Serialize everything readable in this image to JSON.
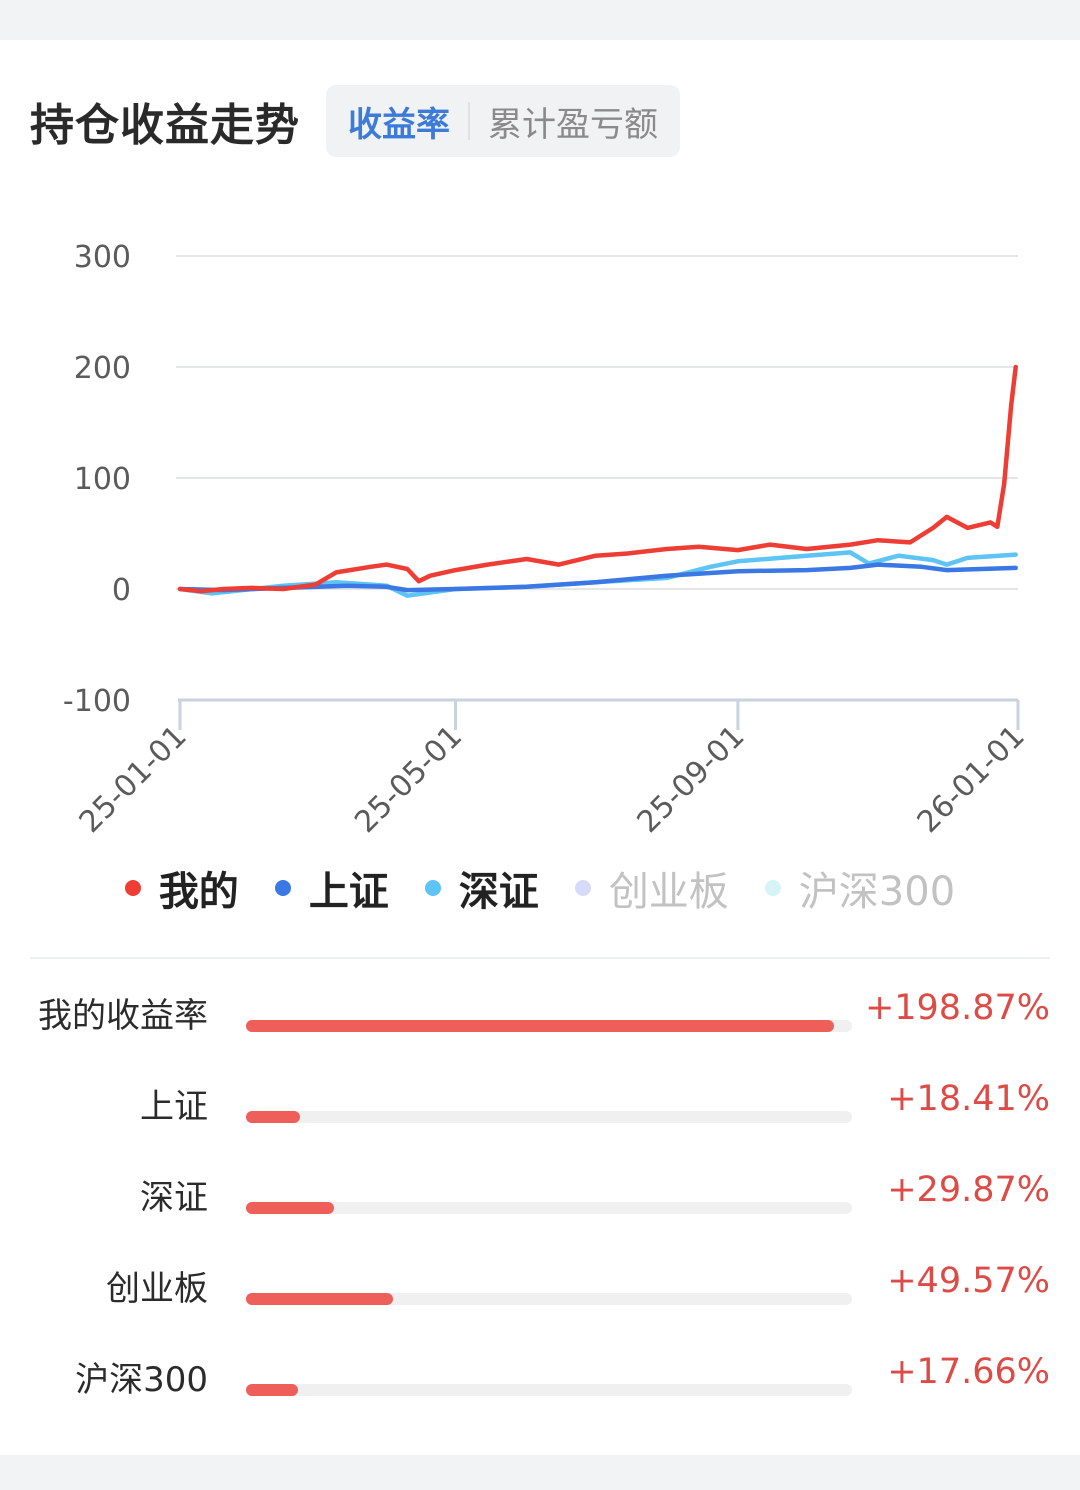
{
  "header": {
    "title": "持仓收益走势",
    "tabs": [
      {
        "label": "收益率",
        "active": true
      },
      {
        "label": "累计盈亏额",
        "active": false
      }
    ]
  },
  "chart_data": {
    "type": "line",
    "x_ticks": [
      "25-01-01",
      "25-05-01",
      "25-09-01",
      "26-01-01"
    ],
    "y_ticks": [
      300,
      200,
      100,
      0,
      -100
    ],
    "ylim": [
      -100,
      300
    ],
    "xlim": [
      "2025-01-01",
      "2026-01-01"
    ],
    "grid": true,
    "series": [
      {
        "name": "我的",
        "color": "#ee3d34",
        "visible": true,
        "x": [
          "2025-01-01",
          "2025-01-10",
          "2025-01-20",
          "2025-02-01",
          "2025-02-15",
          "2025-03-01",
          "2025-03-10",
          "2025-03-25",
          "2025-04-01",
          "2025-04-10",
          "2025-04-15",
          "2025-04-20",
          "2025-05-01",
          "2025-05-15",
          "2025-06-01",
          "2025-06-15",
          "2025-07-01",
          "2025-07-15",
          "2025-08-01",
          "2025-08-15",
          "2025-09-01",
          "2025-09-15",
          "2025-10-01",
          "2025-10-20",
          "2025-11-01",
          "2025-11-15",
          "2025-11-25",
          "2025-12-01",
          "2025-12-10",
          "2025-12-20",
          "2025-12-23",
          "2025-12-26",
          "2025-12-29",
          "2025-12-31"
        ],
        "y": [
          0,
          -2,
          0,
          1,
          0,
          4,
          15,
          20,
          22,
          18,
          7,
          12,
          17,
          22,
          27,
          22,
          30,
          32,
          36,
          38,
          35,
          40,
          36,
          40,
          44,
          42,
          55,
          65,
          55,
          60,
          56,
          95,
          165,
          200
        ]
      },
      {
        "name": "上证",
        "color": "#3b78e3",
        "visible": true,
        "x": [
          "2025-01-01",
          "2025-01-20",
          "2025-02-15",
          "2025-03-15",
          "2025-04-01",
          "2025-04-10",
          "2025-05-01",
          "2025-06-01",
          "2025-07-01",
          "2025-08-01",
          "2025-09-01",
          "2025-10-01",
          "2025-10-20",
          "2025-11-01",
          "2025-11-20",
          "2025-12-01",
          "2025-12-31"
        ],
        "y": [
          0,
          -1,
          1,
          3,
          2,
          -1,
          0,
          2,
          6,
          12,
          16,
          17,
          19,
          22,
          20,
          17,
          19
        ]
      },
      {
        "name": "深证",
        "color": "#5ec4f5",
        "visible": true,
        "x": [
          "2025-01-01",
          "2025-01-15",
          "2025-02-15",
          "2025-03-10",
          "2025-04-01",
          "2025-04-10",
          "2025-05-01",
          "2025-06-01",
          "2025-07-01",
          "2025-08-01",
          "2025-08-20",
          "2025-09-01",
          "2025-10-01",
          "2025-10-20",
          "2025-10-28",
          "2025-11-10",
          "2025-11-25",
          "2025-12-01",
          "2025-12-10",
          "2025-12-31"
        ],
        "y": [
          0,
          -4,
          3,
          6,
          3,
          -6,
          0,
          2,
          6,
          10,
          20,
          25,
          30,
          33,
          23,
          30,
          26,
          22,
          28,
          31
        ]
      },
      {
        "name": "创业板",
        "color": "#d8dafb",
        "visible": false
      },
      {
        "name": "沪深300",
        "color": "#d6f4f8",
        "visible": false
      }
    ]
  },
  "comparison": [
    {
      "label": "我的收益率",
      "value_text": "+198.87%",
      "value": 198.87
    },
    {
      "label": "上证",
      "value_text": "+18.41%",
      "value": 18.41
    },
    {
      "label": "深证",
      "value_text": "+29.87%",
      "value": 29.87
    },
    {
      "label": "创业板",
      "value_text": "+49.57%",
      "value": 49.57
    },
    {
      "label": "沪深300",
      "value_text": "+17.66%",
      "value": 17.66
    }
  ]
}
